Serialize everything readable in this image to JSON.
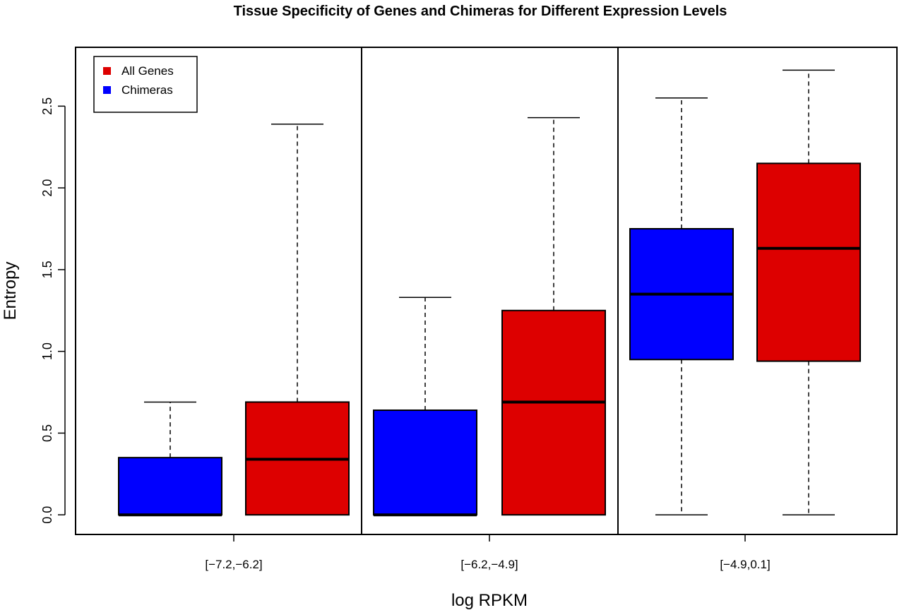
{
  "chart_data": {
    "type": "boxplot",
    "title": "Tissue Specificity of Genes and Chimeras for Different Expression Levels",
    "xlabel": "log RPKM",
    "ylabel": "Entropy",
    "ylim": [
      -0.12,
      2.86
    ],
    "y_ticks": [
      "0.0",
      "0.5",
      "1.0",
      "1.5",
      "2.0",
      "2.5"
    ],
    "y_tick_values": [
      0,
      0.5,
      1.0,
      1.5,
      2.0,
      2.5
    ],
    "categories": [
      "[−7.2,−6.2]",
      "[−6.2,−4.9]",
      "[−4.9,0.1]"
    ],
    "grid": false,
    "legend_position": "top-left",
    "series": [
      {
        "name": "Chimeras",
        "color": "#0000ff",
        "boxes": [
          {
            "whisker_low": 0,
            "q1": 0,
            "median": 0,
            "q3": 0.35,
            "whisker_high": 0.69
          },
          {
            "whisker_low": 0,
            "q1": 0,
            "median": 0,
            "q3": 0.64,
            "whisker_high": 1.33
          },
          {
            "whisker_low": 0,
            "q1": 0.95,
            "median": 1.35,
            "q3": 1.75,
            "whisker_high": 2.55
          }
        ]
      },
      {
        "name": "All Genes",
        "color": "#dd0000",
        "boxes": [
          {
            "whisker_low": 0,
            "q1": 0,
            "median": 0.34,
            "q3": 0.69,
            "whisker_high": 2.39
          },
          {
            "whisker_low": 0,
            "q1": 0,
            "median": 0.69,
            "q3": 1.25,
            "whisker_high": 2.43
          },
          {
            "whisker_low": 0,
            "q1": 0.94,
            "median": 1.63,
            "q3": 2.15,
            "whisker_high": 2.72
          }
        ]
      }
    ],
    "legend": [
      {
        "label": "All Genes",
        "color": "#dd0000"
      },
      {
        "label": "Chimeras",
        "color": "#0000ff"
      }
    ]
  }
}
